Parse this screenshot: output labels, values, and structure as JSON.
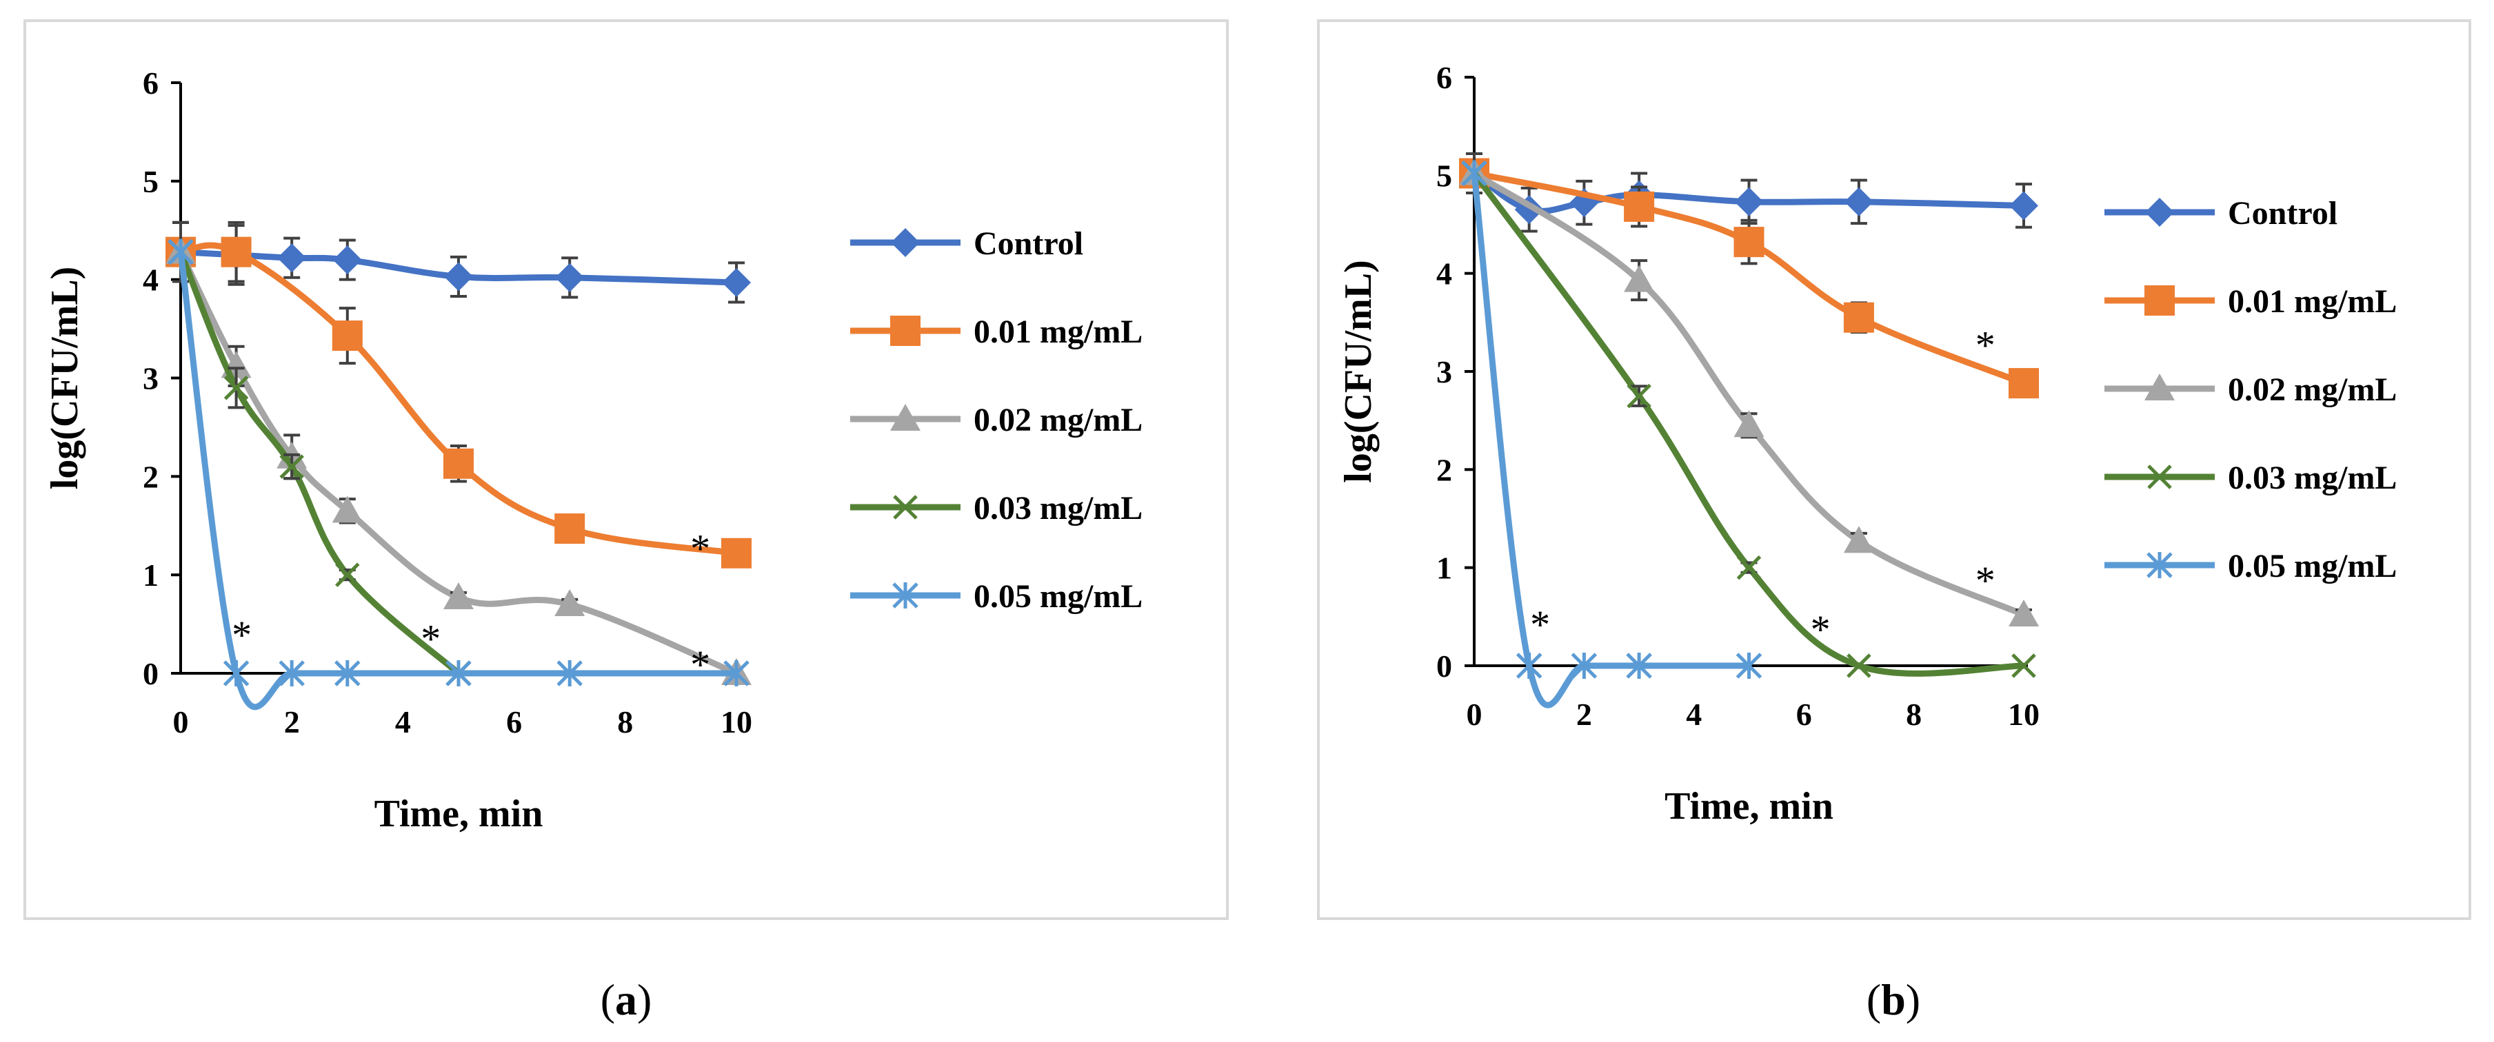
{
  "chart_data": [
    {
      "id": "a",
      "type": "line",
      "panel_label": "a",
      "xlabel": "Time, min",
      "ylabel": "log(CFU/mL)",
      "xlim": [
        0,
        10
      ],
      "ylim": [
        0,
        6
      ],
      "x_ticks": [
        0,
        2,
        4,
        6,
        8,
        10
      ],
      "y_ticks": [
        0,
        1,
        2,
        3,
        4,
        5,
        6
      ],
      "legend_position": "right",
      "series": [
        {
          "name": "Control",
          "color": "#4472C4",
          "marker": "diamond",
          "points": [
            [
              0,
              4.28
            ],
            [
              1,
              4.25
            ],
            [
              2,
              4.22
            ],
            [
              3,
              4.2
            ],
            [
              5,
              4.03
            ],
            [
              7,
              4.02
            ],
            [
              10,
              3.97
            ]
          ],
          "error": [
            0.3,
            0.3,
            0.2,
            0.2,
            0.2,
            0.2,
            0.2
          ]
        },
        {
          "name": "0.01 mg/mL",
          "color": "#ED7D31",
          "marker": "square",
          "points": [
            [
              0,
              4.28
            ],
            [
              1,
              4.28
            ],
            [
              3,
              3.43
            ],
            [
              5,
              2.13
            ],
            [
              7,
              1.47
            ],
            [
              10,
              1.22
            ]
          ],
          "error": [
            0.3,
            0.3,
            0.28,
            0.18,
            0.05,
            0.05
          ]
        },
        {
          "name": "0.02 mg/mL",
          "color": "#A5A5A5",
          "marker": "triangle",
          "points": [
            [
              0,
              4.28
            ],
            [
              1,
              3.12
            ],
            [
              2,
              2.2
            ],
            [
              3,
              1.65
            ],
            [
              5,
              0.77
            ],
            [
              7,
              0.7
            ],
            [
              10,
              0.0
            ]
          ],
          "error": [
            0.3,
            0.2,
            0.22,
            0.12,
            0.05,
            0.05,
            0.0
          ]
        },
        {
          "name": "0.03  mg/mL",
          "color": "#548235",
          "marker": "x",
          "points": [
            [
              0,
              4.28
            ],
            [
              1,
              2.9
            ],
            [
              2,
              2.1
            ],
            [
              3,
              1.0
            ],
            [
              5,
              0.0
            ]
          ],
          "error": [
            0.3,
            0.2,
            0.12,
            0.05,
            0.0
          ]
        },
        {
          "name": "0.05 mg/mL",
          "color": "#5B9BD5",
          "marker": "asterisk",
          "points": [
            [
              0,
              4.28
            ],
            [
              1,
              0.0
            ],
            [
              2,
              0.0
            ],
            [
              3,
              0.0
            ],
            [
              5,
              0.0
            ],
            [
              7,
              0.0
            ],
            [
              10,
              0.0
            ]
          ],
          "error": [
            0,
            0,
            0,
            0,
            0,
            0,
            0
          ]
        }
      ],
      "annotations": [
        {
          "text": "*",
          "x": 1.1,
          "y": 0.42
        },
        {
          "text": "*",
          "x": 4.5,
          "y": 0.38
        },
        {
          "text": "*",
          "x": 9.35,
          "y": 0.12
        },
        {
          "text": "*",
          "x": 9.35,
          "y": 1.3
        }
      ]
    },
    {
      "id": "b",
      "type": "line",
      "panel_label": "b",
      "xlabel": "Time, min",
      "ylabel": "log(CFU/mL)",
      "xlim": [
        0,
        10
      ],
      "ylim": [
        0,
        6
      ],
      "x_ticks": [
        0,
        2,
        4,
        6,
        8,
        10
      ],
      "y_ticks": [
        0,
        1,
        2,
        3,
        4,
        5,
        6
      ],
      "legend_position": "right",
      "series": [
        {
          "name": "Control",
          "color": "#4472C4",
          "marker": "diamond",
          "points": [
            [
              0,
              5.02
            ],
            [
              1,
              4.65
            ],
            [
              2,
              4.72
            ],
            [
              3,
              4.8
            ],
            [
              5,
              4.73
            ],
            [
              7,
              4.73
            ],
            [
              10,
              4.69
            ]
          ],
          "error": [
            0.2,
            0.22,
            0.22,
            0.22,
            0.22,
            0.22,
            0.22
          ]
        },
        {
          "name": "0.01 mg/mL",
          "color": "#ED7D31",
          "marker": "square",
          "points": [
            [
              0,
              5.02
            ],
            [
              3,
              4.68
            ],
            [
              5,
              4.32
            ],
            [
              7,
              3.55
            ],
            [
              10,
              2.88
            ]
          ],
          "error": [
            0.2,
            0.2,
            0.22,
            0.15,
            0.08
          ]
        },
        {
          "name": "0.02 mg/mL",
          "color": "#A5A5A5",
          "marker": "triangle",
          "points": [
            [
              0,
              5.02
            ],
            [
              3,
              3.93
            ],
            [
              5,
              2.45
            ],
            [
              7,
              1.27
            ],
            [
              10,
              0.52
            ]
          ],
          "error": [
            0.2,
            0.2,
            0.12,
            0.08,
            0.05
          ]
        },
        {
          "name": "0.03 mg/mL",
          "color": "#548235",
          "marker": "x",
          "points": [
            [
              0,
              5.02
            ],
            [
              3,
              2.75
            ],
            [
              5,
              1.0
            ],
            [
              7,
              0.0
            ],
            [
              10,
              0.0
            ]
          ],
          "error": [
            0.2,
            0.1,
            0.05,
            0.0,
            0.0
          ]
        },
        {
          "name": "0.05 mg/mL",
          "color": "#5B9BD5",
          "marker": "asterisk",
          "points": [
            [
              0,
              5.02
            ],
            [
              1,
              0.0
            ],
            [
              2,
              0.0
            ],
            [
              3,
              0.0
            ],
            [
              5,
              0.0
            ]
          ],
          "error": [
            0,
            0,
            0,
            0,
            0
          ]
        }
      ],
      "annotations": [
        {
          "text": "*",
          "x": 1.2,
          "y": 0.45
        },
        {
          "text": "*",
          "x": 6.3,
          "y": 0.4
        },
        {
          "text": "*",
          "x": 9.3,
          "y": 3.3
        },
        {
          "text": "*",
          "x": 9.3,
          "y": 0.9
        }
      ]
    }
  ]
}
